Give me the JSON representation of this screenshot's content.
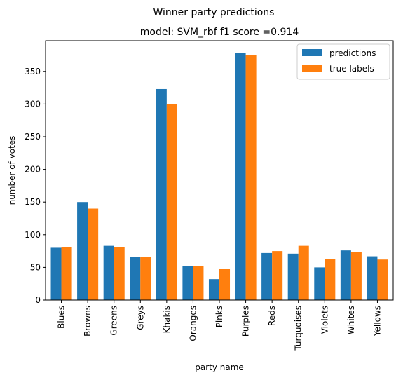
{
  "chart_data": {
    "type": "bar",
    "suptitle": "Winner party predictions",
    "title": "model: SVM_rbf f1 score =0.914",
    "xlabel": "party name",
    "ylabel": "number of votes",
    "ylim": [
      0,
      397
    ],
    "yticks": [
      0,
      50,
      100,
      150,
      200,
      250,
      300,
      350
    ],
    "grid": false,
    "legend_position": "top-right",
    "categories": [
      "Blues",
      "Browns",
      "Greens",
      "Greys",
      "Khakis",
      "Oranges",
      "Pinks",
      "Purples",
      "Reds",
      "Turquoises",
      "Violets",
      "Whites",
      "Yellows"
    ],
    "series": [
      {
        "name": "predictions",
        "color": "#1f77b4",
        "values": [
          80,
          150,
          83,
          66,
          323,
          52,
          32,
          378,
          72,
          71,
          50,
          76,
          67
        ]
      },
      {
        "name": "true labels",
        "color": "#ff7f0e",
        "values": [
          81,
          140,
          81,
          66,
          300,
          52,
          48,
          375,
          75,
          83,
          63,
          73,
          62
        ]
      }
    ]
  }
}
